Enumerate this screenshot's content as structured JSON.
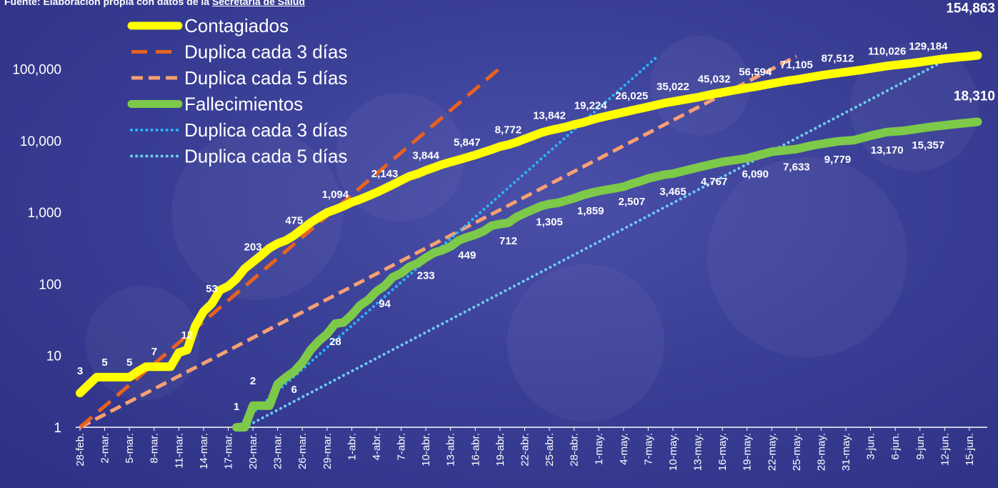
{
  "source_prefix": "Fuente: Elaboración propia con datos de la ",
  "source_link": "Secretaría de Salud",
  "colors": {
    "contagiados": "#ffff00",
    "fallecimientos": "#7dc94a",
    "dup3_cont": "#e8621e",
    "dup5_cont": "#f7a071",
    "dup3_fall": "#29b6f6",
    "dup5_fall": "#6ecdf2",
    "labels": "#ffffff"
  },
  "chart_data": {
    "type": "line",
    "scale": "log",
    "ylim": [
      1,
      160000
    ],
    "yticks": [
      1,
      10,
      100,
      1000,
      10000,
      100000
    ],
    "ytick_labels": [
      "1",
      "10",
      "100",
      "1,000",
      "10,000",
      "100,000"
    ],
    "xlim": [
      "28-feb.",
      "17-jun."
    ],
    "xtick_labels": [
      "28-feb.",
      "2-mar.",
      "5-mar.",
      "8-mar.",
      "11-mar.",
      "14-mar.",
      "17-mar.",
      "20-mar.",
      "23-mar.",
      "26-mar.",
      "29-mar.",
      "1-abr.",
      "4-abr.",
      "7-abr.",
      "10-abr.",
      "13-abr.",
      "16-abr.",
      "19-abr.",
      "22-abr.",
      "25-abr.",
      "28-abr.",
      "1-may.",
      "4-may.",
      "7-may.",
      "10-may.",
      "13-may.",
      "16-may.",
      "19-may.",
      "22-may.",
      "25-may.",
      "28-may.",
      "31-may.",
      "3-jun.",
      "6-jun.",
      "9-jun.",
      "12-jun.",
      "15-jun."
    ],
    "legend": [
      "Contagiados",
      "Duplica cada 3 días",
      "Duplica cada 5 días",
      "Fallecimientos",
      "Duplica cada 3 días",
      "Duplica cada 5 días"
    ],
    "legend_position": "top-left",
    "series": [
      {
        "name": "Contagiados",
        "style": "solid",
        "points": [
          [
            "28-feb.",
            3
          ],
          [
            "1-mar.",
            5
          ],
          [
            "5-mar.",
            5
          ],
          [
            "6-mar.",
            6
          ],
          [
            "7-mar.",
            7
          ],
          [
            "10-mar.",
            7
          ],
          [
            "11-mar.",
            11
          ],
          [
            "12-mar.",
            12
          ],
          [
            "13-mar.",
            26
          ],
          [
            "14-mar.",
            41
          ],
          [
            "15-mar.",
            53
          ],
          [
            "16-mar.",
            82
          ],
          [
            "17-mar.",
            93
          ],
          [
            "18-mar.",
            118
          ],
          [
            "19-mar.",
            164
          ],
          [
            "20-mar.",
            203
          ],
          [
            "21-mar.",
            251
          ],
          [
            "22-mar.",
            316
          ],
          [
            "23-mar.",
            367
          ],
          [
            "24-mar.",
            405
          ],
          [
            "25-mar.",
            475
          ],
          [
            "26-mar.",
            585
          ],
          [
            "27-mar.",
            717
          ],
          [
            "28-mar.",
            848
          ],
          [
            "29-mar.",
            993
          ],
          [
            "30-mar.",
            1094
          ],
          [
            "31-mar.",
            1215
          ],
          [
            "1-abr.",
            1378
          ],
          [
            "2-abr.",
            1510
          ],
          [
            "3-abr.",
            1688
          ],
          [
            "4-abr.",
            1890
          ],
          [
            "5-abr.",
            2143
          ],
          [
            "6-abr.",
            2439
          ],
          [
            "7-abr.",
            2785
          ],
          [
            "8-abr.",
            3181
          ],
          [
            "9-abr.",
            3441
          ],
          [
            "10-abr.",
            3844
          ],
          [
            "11-abr.",
            4219
          ],
          [
            "12-abr.",
            4661
          ],
          [
            "13-abr.",
            5014
          ],
          [
            "14-abr.",
            5399
          ],
          [
            "15-abr.",
            5847
          ],
          [
            "16-abr.",
            6297
          ],
          [
            "17-abr.",
            6875
          ],
          [
            "18-abr.",
            7497
          ],
          [
            "19-abr.",
            8261
          ],
          [
            "20-abr.",
            8772
          ],
          [
            "21-abr.",
            9501
          ],
          [
            "22-abr.",
            10544
          ],
          [
            "23-abr.",
            11633
          ],
          [
            "24-abr.",
            12872
          ],
          [
            "25-abr.",
            13842
          ],
          [
            "26-abr.",
            14677
          ],
          [
            "27-abr.",
            15529
          ],
          [
            "28-abr.",
            16752
          ],
          [
            "29-abr.",
            17799
          ],
          [
            "30-abr.",
            19224
          ],
          [
            "1-may.",
            20739
          ],
          [
            "4-may.",
            24905
          ],
          [
            "7-may.",
            29616
          ],
          [
            "8-may.",
            31522
          ],
          [
            "9-may.",
            33460
          ],
          [
            "10-may.",
            35022
          ],
          [
            "13-may.",
            40186
          ],
          [
            "14-may.",
            42595
          ],
          [
            "15-may.",
            45032
          ],
          [
            "16-may.",
            47144
          ],
          [
            "19-may.",
            54346
          ],
          [
            "20-may.",
            56594
          ],
          [
            "22-may.",
            62527
          ],
          [
            "24-may.",
            68620
          ],
          [
            "25-may.",
            71105
          ],
          [
            "28-may.",
            81400
          ],
          [
            "29-may.",
            84627
          ],
          [
            "30-may.",
            87512
          ],
          [
            "2-jun.",
            97326
          ],
          [
            "5-jun.",
            110026
          ],
          [
            "8-jun.",
            120102
          ],
          [
            "10-jun.",
            129184
          ],
          [
            "12-jun.",
            139196
          ],
          [
            "14-jun.",
            146837
          ],
          [
            "15-jun.",
            150264
          ],
          [
            "16-jun.",
            154863
          ]
        ]
      },
      {
        "name": "Duplica cada 3 días",
        "style": "dash",
        "points": [
          [
            "28-feb.",
            1
          ],
          [
            "19-abr.",
            103000
          ]
        ]
      },
      {
        "name": "Duplica cada 5 días",
        "style": "dash",
        "points": [
          [
            "28-feb.",
            1
          ],
          [
            "25-may.",
            150000
          ]
        ]
      },
      {
        "name": "Fallecimientos",
        "style": "solid",
        "points": [
          [
            "18-mar.",
            1
          ],
          [
            "19-mar.",
            1
          ],
          [
            "20-mar.",
            2
          ],
          [
            "21-mar.",
            2
          ],
          [
            "22-mar.",
            2
          ],
          [
            "23-mar.",
            4
          ],
          [
            "24-mar.",
            5
          ],
          [
            "25-mar.",
            6
          ],
          [
            "26-mar.",
            8
          ],
          [
            "27-mar.",
            12
          ],
          [
            "28-mar.",
            16
          ],
          [
            "29-mar.",
            20
          ],
          [
            "30-mar.",
            28
          ],
          [
            "31-mar.",
            29
          ],
          [
            "1-abr.",
            37
          ],
          [
            "2-abr.",
            50
          ],
          [
            "3-abr.",
            60
          ],
          [
            "4-abr.",
            79
          ],
          [
            "5-abr.",
            94
          ],
          [
            "6-abr.",
            125
          ],
          [
            "7-abr.",
            141
          ],
          [
            "8-abr.",
            174
          ],
          [
            "9-abr.",
            194
          ],
          [
            "10-abr.",
            233
          ],
          [
            "11-abr.",
            273
          ],
          [
            "12-abr.",
            296
          ],
          [
            "13-abr.",
            332
          ],
          [
            "14-abr.",
            406
          ],
          [
            "15-abr.",
            449
          ],
          [
            "16-abr.",
            486
          ],
          [
            "17-abr.",
            546
          ],
          [
            "18-abr.",
            650
          ],
          [
            "19-abr.",
            686
          ],
          [
            "20-abr.",
            712
          ],
          [
            "21-abr.",
            857
          ],
          [
            "22-abr.",
            970
          ],
          [
            "24-abr.",
            1221
          ],
          [
            "25-abr.",
            1305
          ],
          [
            "26-abr.",
            1351
          ],
          [
            "28-abr.",
            1569
          ],
          [
            "29-abr.",
            1732
          ],
          [
            "30-abr.",
            1859
          ],
          [
            "1-may.",
            1972
          ],
          [
            "4-may.",
            2271
          ],
          [
            "5-may.",
            2507
          ],
          [
            "6-may.",
            2704
          ],
          [
            "7-may.",
            2961
          ],
          [
            "8-may.",
            3160
          ],
          [
            "9-may.",
            3353
          ],
          [
            "10-may.",
            3465
          ],
          [
            "13-may.",
            4220
          ],
          [
            "15-may.",
            4767
          ],
          [
            "16-may.",
            5045
          ],
          [
            "19-may.",
            5666
          ],
          [
            "20-may.",
            6090
          ],
          [
            "22-may.",
            6989
          ],
          [
            "25-may.",
            7633
          ],
          [
            "27-may.",
            8597
          ],
          [
            "30-may.",
            9779
          ],
          [
            "1-jun.",
            10167
          ],
          [
            "3-jun.",
            11729
          ],
          [
            "5-jun.",
            13170
          ],
          [
            "7-jun.",
            13699
          ],
          [
            "10-jun.",
            15357
          ],
          [
            "13-jun.",
            16872
          ],
          [
            "16-jun.",
            18310
          ]
        ]
      },
      {
        "name": "Duplica cada 3 días",
        "style": "dot",
        "points": [
          [
            "18-mar.",
            1
          ],
          [
            "8-may.",
            145000
          ]
        ]
      },
      {
        "name": "Duplica cada 5 días",
        "style": "dot",
        "points": [
          [
            "19-mar.",
            1
          ],
          [
            "13-jun.",
            150000
          ]
        ]
      }
    ],
    "data_labels": [
      {
        "series": "Contagiados",
        "x": "28-feb.",
        "y": 3,
        "text": "3"
      },
      {
        "series": "Contagiados",
        "x": "2-mar.",
        "y": 5,
        "text": "5"
      },
      {
        "series": "Contagiados",
        "x": "5-mar.",
        "y": 5,
        "text": "5"
      },
      {
        "series": "Contagiados",
        "x": "8-mar.",
        "y": 7,
        "text": "7"
      },
      {
        "series": "Contagiados",
        "x": "12-mar.",
        "y": 12,
        "text": "12"
      },
      {
        "series": "Contagiados",
        "x": "15-mar.",
        "y": 53,
        "text": "53"
      },
      {
        "series": "Contagiados",
        "x": "20-mar.",
        "y": 203,
        "text": "203"
      },
      {
        "series": "Contagiados",
        "x": "25-mar.",
        "y": 475,
        "text": "475"
      },
      {
        "series": "Contagiados",
        "x": "30-mar.",
        "y": 1094,
        "text": "1,094"
      },
      {
        "series": "Contagiados",
        "x": "5-abr.",
        "y": 2143,
        "text": "2,143"
      },
      {
        "series": "Contagiados",
        "x": "10-abr.",
        "y": 3844,
        "text": "3,844"
      },
      {
        "series": "Contagiados",
        "x": "15-abr.",
        "y": 5847,
        "text": "5,847"
      },
      {
        "series": "Contagiados",
        "x": "20-abr.",
        "y": 8772,
        "text": "8,772"
      },
      {
        "series": "Contagiados",
        "x": "25-abr.",
        "y": 13842,
        "text": "13,842"
      },
      {
        "series": "Contagiados",
        "x": "30-abr.",
        "y": 19224,
        "text": "19,224"
      },
      {
        "series": "Contagiados",
        "x": "5-may.",
        "y": 26025,
        "text": "26,025"
      },
      {
        "series": "Contagiados",
        "x": "10-may.",
        "y": 35022,
        "text": "35,022"
      },
      {
        "series": "Contagiados",
        "x": "15-may.",
        "y": 45032,
        "text": "45,032"
      },
      {
        "series": "Contagiados",
        "x": "20-may.",
        "y": 56594,
        "text": "56,594"
      },
      {
        "series": "Contagiados",
        "x": "25-may.",
        "y": 71105,
        "text": "71,105"
      },
      {
        "series": "Contagiados",
        "x": "30-may.",
        "y": 87512,
        "text": "87,512"
      },
      {
        "series": "Contagiados",
        "x": "5-jun.",
        "y": 110026,
        "text": "110,026"
      },
      {
        "series": "Contagiados",
        "x": "10-jun.",
        "y": 129184,
        "text": "129,184"
      },
      {
        "series": "Contagiados",
        "x": "16-jun.",
        "y": 154863,
        "text": "154,863"
      },
      {
        "series": "Fallecimientos",
        "x": "18-mar.",
        "y": 1,
        "text": "1"
      },
      {
        "series": "Fallecimientos",
        "x": "20-mar.",
        "y": 2,
        "text": "2"
      },
      {
        "series": "Fallecimientos",
        "x": "25-mar.",
        "y": 6,
        "text": "6"
      },
      {
        "series": "Fallecimientos",
        "x": "30-mar.",
        "y": 28,
        "text": "28"
      },
      {
        "series": "Fallecimientos",
        "x": "5-abr.",
        "y": 94,
        "text": "94"
      },
      {
        "series": "Fallecimientos",
        "x": "10-abr.",
        "y": 233,
        "text": "233"
      },
      {
        "series": "Fallecimientos",
        "x": "15-abr.",
        "y": 449,
        "text": "449"
      },
      {
        "series": "Fallecimientos",
        "x": "20-abr.",
        "y": 712,
        "text": "712"
      },
      {
        "series": "Fallecimientos",
        "x": "25-abr.",
        "y": 1305,
        "text": "1,305"
      },
      {
        "series": "Fallecimientos",
        "x": "30-abr.",
        "y": 1859,
        "text": "1,859"
      },
      {
        "series": "Fallecimientos",
        "x": "5-may.",
        "y": 2507,
        "text": "2,507"
      },
      {
        "series": "Fallecimientos",
        "x": "10-may.",
        "y": 3465,
        "text": "3,465"
      },
      {
        "series": "Fallecimientos",
        "x": "15-may.",
        "y": 4767,
        "text": "4,767"
      },
      {
        "series": "Fallecimientos",
        "x": "20-may.",
        "y": 6090,
        "text": "6,090"
      },
      {
        "series": "Fallecimientos",
        "x": "25-may.",
        "y": 7633,
        "text": "7,633"
      },
      {
        "series": "Fallecimientos",
        "x": "30-may.",
        "y": 9779,
        "text": "9,779"
      },
      {
        "series": "Fallecimientos",
        "x": "5-jun.",
        "y": 13170,
        "text": "13,170"
      },
      {
        "series": "Fallecimientos",
        "x": "10-jun.",
        "y": 15357,
        "text": "15,357"
      },
      {
        "series": "Fallecimientos",
        "x": "16-jun.",
        "y": 18310,
        "text": "18,310"
      }
    ]
  }
}
